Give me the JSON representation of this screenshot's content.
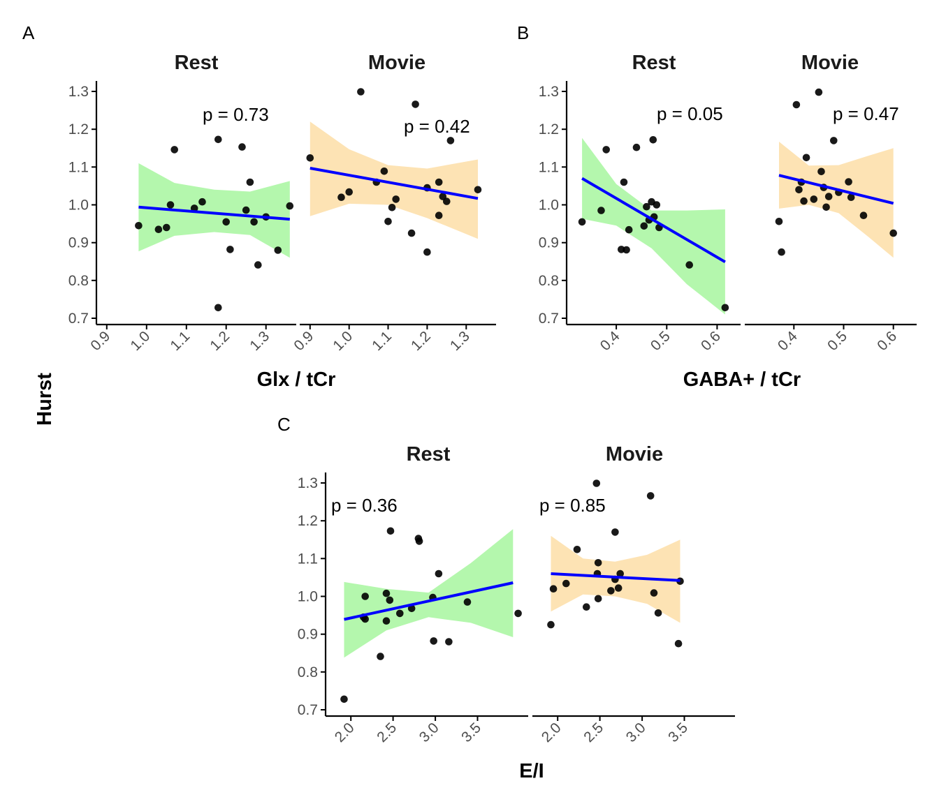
{
  "figure": {
    "y_axis_label": "Hurst"
  },
  "colors": {
    "rest_band": "#b4f7ad",
    "movie_band": "#fde3b4",
    "fit_line": "#0000ff",
    "points": "#000000",
    "axis": "#000000"
  },
  "chart_data": [
    {
      "id": "A",
      "tag": "A",
      "type": "scatter",
      "xlabel": "Glx / tCr",
      "ylabel": "Hurst",
      "ylim": [
        0.7,
        1.3
      ],
      "yticks": [
        0.7,
        0.8,
        0.9,
        1.0,
        1.1,
        1.2,
        1.3
      ],
      "ytick_labels": [
        "0.7",
        "0.8",
        "0.9",
        "1.0",
        "1.1",
        "1.2",
        "1.3"
      ],
      "xlim": [
        0.895,
        1.355
      ],
      "xticks": [
        0.9,
        1.0,
        1.1,
        1.2,
        1.3
      ],
      "xtick_labels": [
        "0.9",
        "1.0",
        "1.1",
        "1.2",
        "1.3"
      ],
      "facets": [
        {
          "strip": "Rest",
          "band_color": "#b4f7ad",
          "p_label": "p =  0.73",
          "fit": {
            "x": [
              0.98,
              1.36
            ],
            "y": [
              0.994,
              0.962
            ]
          },
          "ci_x": [
            0.98,
            1.07,
            1.17,
            1.26,
            1.36
          ],
          "ci_upper": [
            1.11,
            1.058,
            1.04,
            1.035,
            1.063
          ],
          "ci_lower": [
            0.877,
            0.918,
            0.928,
            0.92,
            0.86
          ],
          "points": [
            [
              0.98,
              0.945
            ],
            [
              1.03,
              0.935
            ],
            [
              1.05,
              0.94
            ],
            [
              1.06,
              1.0
            ],
            [
              1.07,
              1.146
            ],
            [
              1.12,
              0.991
            ],
            [
              1.14,
              1.008
            ],
            [
              1.18,
              1.173
            ],
            [
              1.18,
              0.728
            ],
            [
              1.2,
              0.955
            ],
            [
              1.21,
              0.882
            ],
            [
              1.24,
              1.153
            ],
            [
              1.25,
              0.986
            ],
            [
              1.26,
              1.06
            ],
            [
              1.27,
              0.955
            ],
            [
              1.28,
              0.841
            ],
            [
              1.3,
              0.968
            ],
            [
              1.33,
              0.88
            ],
            [
              1.36,
              0.997
            ]
          ]
        },
        {
          "strip": "Movie",
          "band_color": "#fde3b4",
          "p_label": "p =  0.42",
          "fit": {
            "x": [
              0.9,
              1.33
            ],
            "y": [
              1.097,
              1.017
            ]
          },
          "ci_x": [
            0.9,
            1.0,
            1.1,
            1.2,
            1.33
          ],
          "ci_upper": [
            1.22,
            1.147,
            1.105,
            1.096,
            1.12
          ],
          "ci_lower": [
            0.97,
            1.003,
            1.0,
            0.965,
            0.91
          ],
          "points": [
            [
              0.9,
              1.124
            ],
            [
              0.98,
              1.02
            ],
            [
              1.0,
              1.034
            ],
            [
              1.03,
              1.299
            ],
            [
              1.07,
              1.06
            ],
            [
              1.09,
              1.089
            ],
            [
              1.1,
              0.956
            ],
            [
              1.11,
              0.993
            ],
            [
              1.12,
              1.015
            ],
            [
              1.16,
              0.925
            ],
            [
              1.17,
              1.266
            ],
            [
              1.2,
              0.875
            ],
            [
              1.2,
              1.045
            ],
            [
              1.23,
              1.06
            ],
            [
              1.23,
              0.972
            ],
            [
              1.24,
              1.022
            ],
            [
              1.25,
              1.009
            ],
            [
              1.26,
              1.17
            ],
            [
              1.33,
              1.04
            ]
          ]
        }
      ]
    },
    {
      "id": "B",
      "tag": "B",
      "type": "scatter",
      "xlabel": "GABA+ / tCr",
      "ylabel": "Hurst",
      "ylim": [
        0.7,
        1.3
      ],
      "yticks": [
        0.7,
        0.8,
        0.9,
        1.0,
        1.1,
        1.2,
        1.3
      ],
      "ytick_labels": [
        "0.7",
        "0.8",
        "0.9",
        "1.0",
        "1.1",
        "1.2",
        "1.3"
      ],
      "xlim": [
        0.318,
        0.63
      ],
      "xticks": [
        0.4,
        0.5,
        0.6
      ],
      "xtick_labels": [
        "0.4",
        "0.5",
        "0.6"
      ],
      "facets": [
        {
          "strip": "Rest",
          "band_color": "#b4f7ad",
          "p_label": "p =  0.05",
          "fit": {
            "x": [
              0.332,
              0.616
            ],
            "y": [
              1.07,
              0.849
            ]
          },
          "ci_x": [
            0.332,
            0.4,
            0.47,
            0.54,
            0.616
          ],
          "ci_upper": [
            1.177,
            1.055,
            0.985,
            0.985,
            0.988
          ],
          "ci_lower": [
            0.963,
            0.945,
            0.885,
            0.79,
            0.71
          ],
          "points": [
            [
              0.332,
              0.955
            ],
            [
              0.37,
              0.985
            ],
            [
              0.38,
              1.146
            ],
            [
              0.41,
              0.882
            ],
            [
              0.415,
              1.06
            ],
            [
              0.42,
              0.881
            ],
            [
              0.425,
              0.934
            ],
            [
              0.44,
              1.152
            ],
            [
              0.455,
              0.944
            ],
            [
              0.46,
              0.995
            ],
            [
              0.465,
              0.96
            ],
            [
              0.47,
              1.008
            ],
            [
              0.473,
              1.172
            ],
            [
              0.475,
              0.968
            ],
            [
              0.48,
              1.0
            ],
            [
              0.485,
              0.94
            ],
            [
              0.545,
              0.841
            ],
            [
              0.616,
              0.728
            ]
          ]
        },
        {
          "strip": "Movie",
          "band_color": "#fde3b4",
          "p_label": "p =  0.47",
          "fit": {
            "x": [
              0.37,
              0.6
            ],
            "y": [
              1.078,
              1.004
            ]
          },
          "ci_x": [
            0.37,
            0.43,
            0.49,
            0.55,
            0.6
          ],
          "ci_upper": [
            1.167,
            1.104,
            1.105,
            1.13,
            1.15
          ],
          "ci_lower": [
            0.99,
            1.0,
            0.978,
            0.915,
            0.86
          ],
          "points": [
            [
              0.37,
              0.956
            ],
            [
              0.375,
              0.875
            ],
            [
              0.405,
              1.265
            ],
            [
              0.41,
              1.04
            ],
            [
              0.415,
              1.06
            ],
            [
              0.42,
              1.01
            ],
            [
              0.425,
              1.125
            ],
            [
              0.44,
              1.015
            ],
            [
              0.45,
              1.298
            ],
            [
              0.455,
              1.088
            ],
            [
              0.46,
              1.046
            ],
            [
              0.465,
              0.994
            ],
            [
              0.47,
              1.022
            ],
            [
              0.48,
              1.17
            ],
            [
              0.49,
              1.033
            ],
            [
              0.51,
              1.061
            ],
            [
              0.515,
              1.02
            ],
            [
              0.54,
              0.972
            ],
            [
              0.6,
              0.925
            ]
          ]
        }
      ]
    },
    {
      "id": "C",
      "tag": "C",
      "type": "scatter",
      "xlabel": "E/I",
      "ylabel": "Hurst",
      "ylim": [
        0.7,
        1.3
      ],
      "yticks": [
        0.7,
        0.8,
        0.9,
        1.0,
        1.1,
        1.2,
        1.3
      ],
      "ytick_labels": [
        "0.7",
        "0.8",
        "0.9",
        "1.0",
        "1.1",
        "1.2",
        "1.3"
      ],
      "xlim": [
        1.8,
        4.0
      ],
      "xticks": [
        2.0,
        2.5,
        3.0,
        3.5
      ],
      "xtick_labels": [
        "2.0",
        "2.5",
        "3.0",
        "3.5"
      ],
      "facets": [
        {
          "strip": "Rest",
          "band_color": "#b4f7ad",
          "p_label": "p =  0.36",
          "fit": {
            "x": [
              1.92,
              3.92
            ],
            "y": [
              0.939,
              1.036
            ]
          },
          "ci_x": [
            1.92,
            2.42,
            2.92,
            3.42,
            3.92
          ],
          "ci_upper": [
            1.038,
            1.02,
            1.01,
            1.088,
            1.178
          ],
          "ci_lower": [
            0.838,
            0.91,
            0.945,
            0.93,
            0.892
          ],
          "points": [
            [
              1.92,
              0.728
            ],
            [
              2.15,
              0.945
            ],
            [
              2.17,
              0.94
            ],
            [
              2.17,
              1.0
            ],
            [
              2.35,
              0.841
            ],
            [
              2.42,
              0.935
            ],
            [
              2.42,
              1.008
            ],
            [
              2.46,
              0.99
            ],
            [
              2.47,
              1.173
            ],
            [
              2.58,
              0.955
            ],
            [
              2.72,
              0.968
            ],
            [
              2.8,
              1.153
            ],
            [
              2.81,
              1.146
            ],
            [
              2.97,
              0.997
            ],
            [
              2.98,
              0.882
            ],
            [
              3.04,
              1.06
            ],
            [
              3.16,
              0.88
            ],
            [
              3.38,
              0.985
            ],
            [
              3.98,
              0.955
            ]
          ]
        },
        {
          "strip": "Movie",
          "band_color": "#fde3b4",
          "p_label": "p =  0.85",
          "fit": {
            "x": [
              1.92,
              3.45
            ],
            "y": [
              1.06,
              1.042
            ]
          },
          "ci_x": [
            1.92,
            2.3,
            2.68,
            3.06,
            3.45
          ],
          "ci_upper": [
            1.16,
            1.1,
            1.092,
            1.11,
            1.15
          ],
          "ci_lower": [
            0.96,
            1.005,
            1.0,
            0.98,
            0.93
          ],
          "points": [
            [
              1.92,
              0.925
            ],
            [
              1.95,
              1.02
            ],
            [
              2.1,
              1.034
            ],
            [
              2.23,
              1.124
            ],
            [
              2.34,
              0.972
            ],
            [
              2.46,
              1.299
            ],
            [
              2.47,
              1.06
            ],
            [
              2.48,
              1.089
            ],
            [
              2.48,
              0.994
            ],
            [
              2.63,
              1.015
            ],
            [
              2.68,
              1.17
            ],
            [
              2.68,
              1.045
            ],
            [
              2.72,
              1.022
            ],
            [
              2.74,
              1.06
            ],
            [
              3.1,
              1.266
            ],
            [
              3.14,
              1.009
            ],
            [
              3.19,
              0.956
            ],
            [
              3.43,
              0.875
            ],
            [
              3.45,
              1.04
            ]
          ]
        }
      ]
    }
  ]
}
